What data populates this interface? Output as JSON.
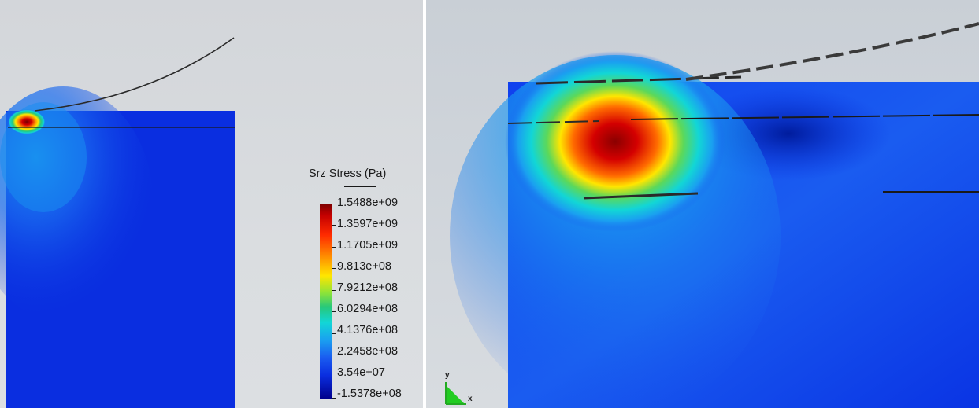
{
  "legend": {
    "title": "Srz Stress (Pa)",
    "labels": [
      "1.5488e+09",
      "1.3597e+09",
      "1.1705e+09",
      "9.813e+08",
      "7.9212e+08",
      "6.0294e+08",
      "4.1376e+08",
      "2.2458e+08",
      "3.54e+07",
      "-1.5378e+08"
    ],
    "colormap": [
      "#00008c",
      "#0a2ee0",
      "#1a5cf0",
      "#1aa0f0",
      "#12d6d6",
      "#27c87a",
      "#8be33a",
      "#ffe600",
      "#ff8c00",
      "#ff2a00",
      "#c40000",
      "#7a0000"
    ]
  },
  "axes_triad": {
    "y_label": "y",
    "x_label": "x"
  }
}
